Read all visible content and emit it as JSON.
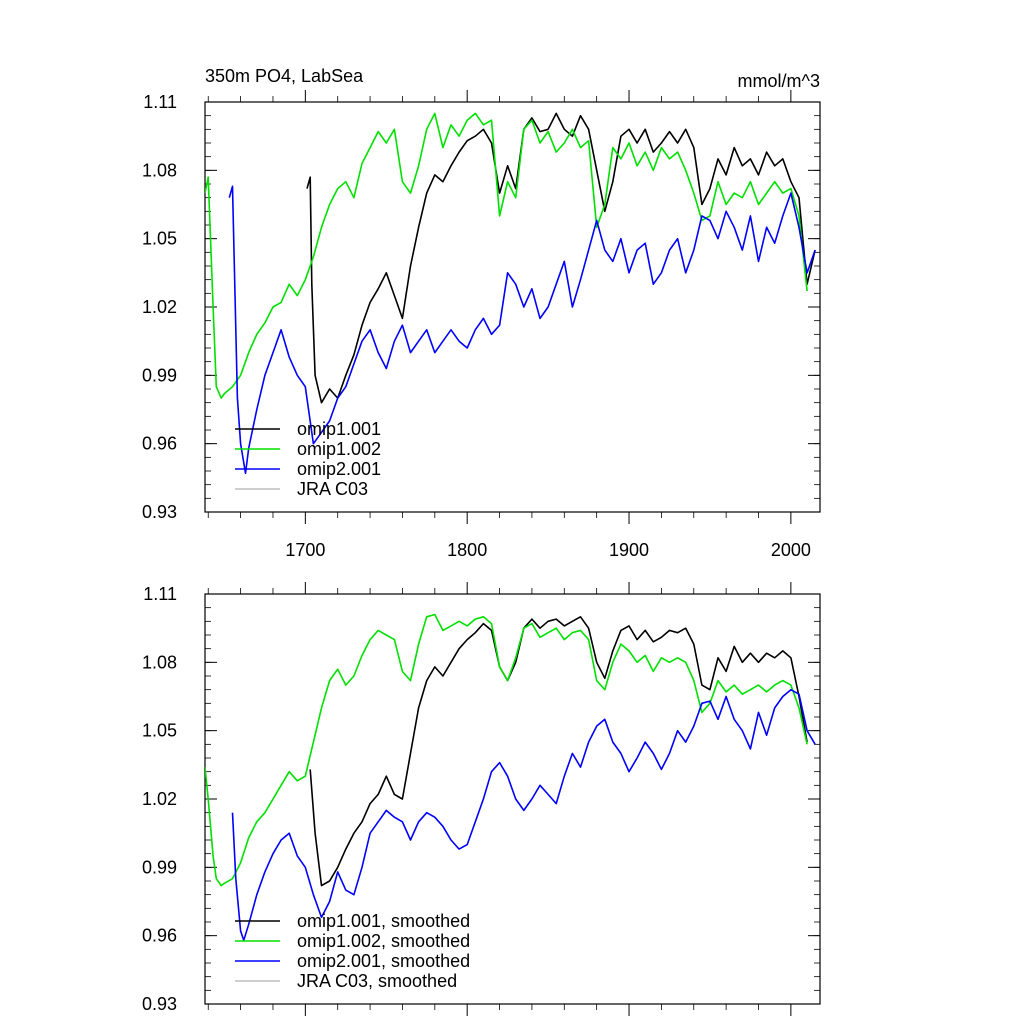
{
  "colors": {
    "omip1_001": "#000000",
    "omip1_002": "#00e000",
    "omip2_001": "#0000ff",
    "jra_c03": "#bfbfbf"
  },
  "chart_data": [
    {
      "type": "line",
      "title": "350m PO4, LabSea",
      "units": "mmol/m^3",
      "xlim": [
        1638,
        2018
      ],
      "ylim": [
        0.93,
        1.11
      ],
      "yticks": [
        "1.11",
        "1.08",
        "1.05",
        "1.02",
        "0.99",
        "0.96",
        "0.93"
      ],
      "xticks": [
        "1700",
        "1800",
        "1900",
        "2000"
      ],
      "legend_position": "bottom-left",
      "series": [
        {
          "name": "omip1.001",
          "color": "#000000",
          "x": [
            1701,
            1703,
            1704,
            1706,
            1710,
            1715,
            1720,
            1725,
            1730,
            1735,
            1740,
            1745,
            1750,
            1755,
            1760,
            1765,
            1770,
            1775,
            1780,
            1785,
            1790,
            1795,
            1800,
            1805,
            1810,
            1815,
            1820,
            1825,
            1830,
            1835,
            1840,
            1845,
            1850,
            1855,
            1860,
            1865,
            1870,
            1875,
            1880,
            1885,
            1890,
            1895,
            1900,
            1905,
            1910,
            1915,
            1920,
            1925,
            1930,
            1935,
            1940,
            1945,
            1950,
            1955,
            1960,
            1965,
            1970,
            1975,
            1980,
            1985,
            1990,
            1995,
            2000,
            2005,
            2010,
            2015
          ],
          "y": [
            1.072,
            1.077,
            1.03,
            0.99,
            0.978,
            0.984,
            0.98,
            0.99,
            0.999,
            1.012,
            1.022,
            1.028,
            1.035,
            1.025,
            1.015,
            1.038,
            1.055,
            1.07,
            1.078,
            1.075,
            1.082,
            1.088,
            1.093,
            1.095,
            1.098,
            1.092,
            1.07,
            1.082,
            1.072,
            1.098,
            1.103,
            1.097,
            1.098,
            1.105,
            1.098,
            1.095,
            1.104,
            1.098,
            1.08,
            1.062,
            1.075,
            1.095,
            1.098,
            1.092,
            1.098,
            1.088,
            1.092,
            1.097,
            1.092,
            1.098,
            1.09,
            1.065,
            1.072,
            1.085,
            1.078,
            1.09,
            1.082,
            1.085,
            1.078,
            1.088,
            1.082,
            1.085,
            1.075,
            1.068,
            1.03,
            1.045
          ]
        },
        {
          "name": "omip1.002",
          "color": "#00e000",
          "x": [
            1638,
            1640,
            1643,
            1645,
            1648,
            1650,
            1655,
            1660,
            1665,
            1670,
            1675,
            1680,
            1685,
            1690,
            1695,
            1700,
            1705,
            1710,
            1715,
            1720,
            1725,
            1730,
            1735,
            1740,
            1745,
            1750,
            1755,
            1760,
            1765,
            1770,
            1775,
            1780,
            1785,
            1790,
            1795,
            1800,
            1805,
            1810,
            1815,
            1820,
            1825,
            1830,
            1835,
            1840,
            1845,
            1850,
            1855,
            1860,
            1865,
            1870,
            1875,
            1880,
            1885,
            1890,
            1895,
            1900,
            1905,
            1910,
            1915,
            1920,
            1925,
            1930,
            1935,
            1940,
            1945,
            1950,
            1955,
            1960,
            1965,
            1970,
            1975,
            1980,
            1985,
            1990,
            1995,
            2000,
            2005,
            2010
          ],
          "y": [
            1.07,
            1.077,
            1.02,
            0.985,
            0.98,
            0.982,
            0.985,
            0.99,
            1.0,
            1.008,
            1.013,
            1.02,
            1.022,
            1.03,
            1.025,
            1.032,
            1.042,
            1.055,
            1.065,
            1.072,
            1.075,
            1.068,
            1.083,
            1.09,
            1.097,
            1.092,
            1.098,
            1.075,
            1.07,
            1.082,
            1.098,
            1.105,
            1.09,
            1.1,
            1.095,
            1.102,
            1.105,
            1.1,
            1.102,
            1.06,
            1.075,
            1.068,
            1.098,
            1.102,
            1.092,
            1.097,
            1.088,
            1.092,
            1.098,
            1.09,
            1.093,
            1.055,
            1.065,
            1.09,
            1.085,
            1.092,
            1.082,
            1.088,
            1.08,
            1.09,
            1.085,
            1.088,
            1.08,
            1.07,
            1.058,
            1.06,
            1.075,
            1.065,
            1.07,
            1.068,
            1.075,
            1.065,
            1.07,
            1.075,
            1.07,
            1.072,
            1.06,
            1.027
          ]
        },
        {
          "name": "omip2.001",
          "color": "#0000ff",
          "x": [
            1653,
            1655,
            1658,
            1660,
            1663,
            1665,
            1670,
            1675,
            1680,
            1685,
            1690,
            1695,
            1700,
            1705,
            1710,
            1715,
            1720,
            1725,
            1730,
            1735,
            1740,
            1745,
            1750,
            1755,
            1760,
            1765,
            1770,
            1775,
            1780,
            1785,
            1790,
            1795,
            1800,
            1805,
            1810,
            1815,
            1820,
            1825,
            1830,
            1835,
            1840,
            1845,
            1850,
            1855,
            1860,
            1865,
            1870,
            1875,
            1880,
            1885,
            1890,
            1895,
            1900,
            1905,
            1910,
            1915,
            1920,
            1925,
            1930,
            1935,
            1940,
            1945,
            1950,
            1955,
            1960,
            1965,
            1970,
            1975,
            1980,
            1985,
            1990,
            1995,
            2000,
            2005,
            2010,
            2015
          ],
          "y": [
            1.068,
            1.073,
            0.98,
            0.96,
            0.947,
            0.958,
            0.975,
            0.99,
            1.0,
            1.01,
            0.998,
            0.99,
            0.985,
            0.96,
            0.965,
            0.97,
            0.98,
            0.985,
            0.995,
            1.005,
            1.01,
            1.0,
            0.993,
            1.005,
            1.012,
            1.0,
            1.005,
            1.01,
            1.0,
            1.005,
            1.01,
            1.005,
            1.002,
            1.01,
            1.015,
            1.008,
            1.012,
            1.035,
            1.03,
            1.02,
            1.028,
            1.015,
            1.02,
            1.03,
            1.04,
            1.02,
            1.032,
            1.045,
            1.058,
            1.045,
            1.04,
            1.05,
            1.035,
            1.045,
            1.048,
            1.03,
            1.035,
            1.045,
            1.05,
            1.035,
            1.045,
            1.06,
            1.058,
            1.05,
            1.062,
            1.055,
            1.045,
            1.06,
            1.04,
            1.055,
            1.048,
            1.06,
            1.07,
            1.055,
            1.035,
            1.045
          ]
        },
        {
          "name": "JRA C03",
          "color": "#bfbfbf",
          "x": [],
          "y": []
        }
      ]
    },
    {
      "type": "line",
      "title": "",
      "units": "",
      "xlim": [
        1638,
        2018
      ],
      "ylim": [
        0.93,
        1.11
      ],
      "yticks": [
        "1.11",
        "1.08",
        "1.05",
        "1.02",
        "0.99",
        "0.96",
        "0.93"
      ],
      "xticks": [],
      "legend_position": "bottom-left",
      "series": [
        {
          "name": "omip1.001, smoothed",
          "color": "#000000",
          "x": [
            1703,
            1706,
            1710,
            1715,
            1720,
            1725,
            1730,
            1735,
            1740,
            1745,
            1750,
            1755,
            1760,
            1765,
            1770,
            1775,
            1780,
            1785,
            1790,
            1795,
            1800,
            1805,
            1810,
            1815,
            1820,
            1825,
            1830,
            1835,
            1840,
            1845,
            1850,
            1855,
            1860,
            1865,
            1870,
            1875,
            1880,
            1885,
            1890,
            1895,
            1900,
            1905,
            1910,
            1915,
            1920,
            1925,
            1930,
            1935,
            1940,
            1945,
            1950,
            1955,
            1960,
            1965,
            1970,
            1975,
            1980,
            1985,
            1990,
            1995,
            2000,
            2005,
            2010
          ],
          "y": [
            1.033,
            1.005,
            0.982,
            0.984,
            0.99,
            0.998,
            1.005,
            1.01,
            1.018,
            1.022,
            1.03,
            1.022,
            1.02,
            1.04,
            1.06,
            1.072,
            1.078,
            1.074,
            1.08,
            1.086,
            1.09,
            1.093,
            1.097,
            1.094,
            1.078,
            1.072,
            1.08,
            1.095,
            1.099,
            1.095,
            1.098,
            1.099,
            1.096,
            1.098,
            1.1,
            1.095,
            1.08,
            1.073,
            1.085,
            1.094,
            1.096,
            1.09,
            1.094,
            1.089,
            1.091,
            1.094,
            1.093,
            1.095,
            1.088,
            1.07,
            1.068,
            1.082,
            1.076,
            1.087,
            1.08,
            1.084,
            1.08,
            1.084,
            1.082,
            1.085,
            1.082,
            1.065,
            1.045
          ]
        },
        {
          "name": "omip1.002, smoothed",
          "color": "#00e000",
          "x": [
            1638,
            1640,
            1643,
            1645,
            1648,
            1650,
            1655,
            1660,
            1665,
            1670,
            1675,
            1680,
            1685,
            1690,
            1695,
            1700,
            1705,
            1710,
            1715,
            1720,
            1725,
            1730,
            1735,
            1740,
            1745,
            1750,
            1755,
            1760,
            1765,
            1770,
            1775,
            1780,
            1785,
            1790,
            1795,
            1800,
            1805,
            1810,
            1815,
            1820,
            1825,
            1830,
            1835,
            1840,
            1845,
            1850,
            1855,
            1860,
            1865,
            1870,
            1875,
            1880,
            1885,
            1890,
            1895,
            1900,
            1905,
            1910,
            1915,
            1920,
            1925,
            1930,
            1935,
            1940,
            1945,
            1950,
            1955,
            1960,
            1965,
            1970,
            1975,
            1980,
            1985,
            1990,
            1995,
            2000,
            2005,
            2010
          ],
          "y": [
            1.034,
            1.02,
            0.995,
            0.985,
            0.982,
            0.983,
            0.985,
            0.992,
            1.003,
            1.01,
            1.014,
            1.02,
            1.026,
            1.032,
            1.028,
            1.03,
            1.045,
            1.06,
            1.072,
            1.077,
            1.07,
            1.074,
            1.083,
            1.09,
            1.094,
            1.092,
            1.09,
            1.076,
            1.072,
            1.088,
            1.1,
            1.101,
            1.094,
            1.096,
            1.098,
            1.096,
            1.099,
            1.1,
            1.097,
            1.078,
            1.072,
            1.082,
            1.095,
            1.097,
            1.091,
            1.093,
            1.095,
            1.09,
            1.093,
            1.094,
            1.09,
            1.072,
            1.068,
            1.08,
            1.088,
            1.085,
            1.08,
            1.083,
            1.076,
            1.082,
            1.08,
            1.082,
            1.08,
            1.072,
            1.058,
            1.062,
            1.072,
            1.067,
            1.07,
            1.066,
            1.068,
            1.07,
            1.067,
            1.07,
            1.072,
            1.07,
            1.06,
            1.044
          ]
        },
        {
          "name": "omip2.001, smoothed",
          "color": "#0000ff",
          "x": [
            1655,
            1657,
            1660,
            1662,
            1665,
            1670,
            1675,
            1680,
            1685,
            1690,
            1695,
            1700,
            1705,
            1710,
            1715,
            1720,
            1725,
            1730,
            1735,
            1740,
            1745,
            1750,
            1755,
            1760,
            1765,
            1770,
            1775,
            1780,
            1785,
            1790,
            1795,
            1800,
            1805,
            1810,
            1815,
            1820,
            1825,
            1830,
            1835,
            1840,
            1845,
            1850,
            1855,
            1860,
            1865,
            1870,
            1875,
            1880,
            1885,
            1890,
            1895,
            1900,
            1905,
            1910,
            1915,
            1920,
            1925,
            1930,
            1935,
            1940,
            1945,
            1950,
            1955,
            1960,
            1965,
            1970,
            1975,
            1980,
            1985,
            1990,
            1995,
            2000,
            2005,
            2010,
            2015
          ],
          "y": [
            1.014,
            0.985,
            0.962,
            0.958,
            0.965,
            0.978,
            0.988,
            0.996,
            1.002,
            1.005,
            0.995,
            0.99,
            0.978,
            0.968,
            0.975,
            0.988,
            0.98,
            0.978,
            0.99,
            1.005,
            1.01,
            1.015,
            1.012,
            1.01,
            1.002,
            1.01,
            1.014,
            1.012,
            1.008,
            1.002,
            0.998,
            1.0,
            1.01,
            1.02,
            1.032,
            1.036,
            1.03,
            1.02,
            1.015,
            1.02,
            1.026,
            1.022,
            1.018,
            1.03,
            1.04,
            1.034,
            1.045,
            1.052,
            1.055,
            1.045,
            1.04,
            1.032,
            1.038,
            1.045,
            1.04,
            1.033,
            1.04,
            1.05,
            1.045,
            1.052,
            1.062,
            1.063,
            1.055,
            1.065,
            1.055,
            1.05,
            1.042,
            1.058,
            1.048,
            1.06,
            1.065,
            1.068,
            1.066,
            1.05,
            1.044
          ]
        },
        {
          "name": "JRA C03, smoothed",
          "color": "#bfbfbf",
          "x": [],
          "y": []
        }
      ]
    }
  ]
}
